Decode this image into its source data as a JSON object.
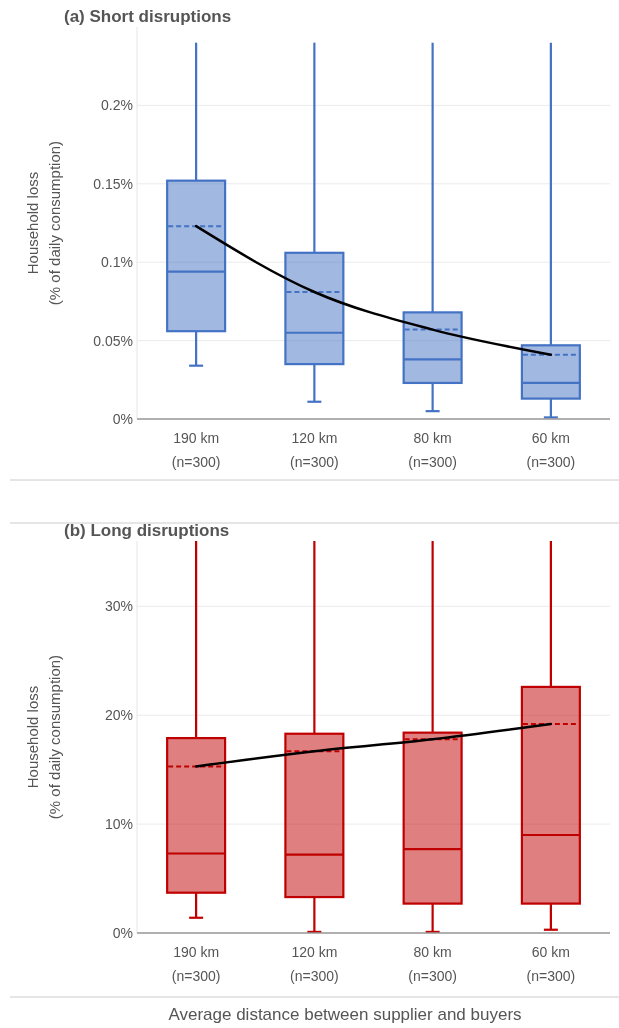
{
  "chart_data": [
    {
      "type": "box",
      "title": "(a) Short disruptions",
      "ylabel": "Household loss\n(% of daily consumption)",
      "categories": [
        "190 km\n(n=300)",
        "120 km\n(n=300)",
        "80 km\n(n=300)",
        "60 km\n(n=300)"
      ],
      "ylim": [
        0,
        0.25
      ],
      "yticks": [
        {
          "value": 0,
          "label": "0%"
        },
        {
          "value": 0.05,
          "label": "0.05%"
        },
        {
          "value": 0.1,
          "label": "0.1%"
        },
        {
          "value": 0.15,
          "label": "0.15%"
        },
        {
          "value": 0.2,
          "label": "0.2%"
        }
      ],
      "grid": "y",
      "series": [
        {
          "type": "box",
          "color": "#4472c4",
          "boxes": [
            {
              "low": 0.034,
              "q1": 0.056,
              "median": 0.094,
              "q3": 0.152,
              "high": 0.24,
              "mean": 0.123
            },
            {
              "low": 0.011,
              "q1": 0.035,
              "median": 0.055,
              "q3": 0.106,
              "high": 0.24,
              "mean": 0.081
            },
            {
              "low": 0.005,
              "q1": 0.023,
              "median": 0.038,
              "q3": 0.068,
              "high": 0.24,
              "mean": 0.057
            },
            {
              "low": 0.001,
              "q1": 0.013,
              "median": 0.023,
              "q3": 0.047,
              "high": 0.24,
              "mean": 0.041
            }
          ]
        },
        {
          "type": "line",
          "color": "#000000",
          "values": [
            0.123,
            0.081,
            0.057,
            0.041
          ]
        }
      ]
    },
    {
      "type": "box",
      "title": "(b) Long disruptions",
      "ylabel": "Household loss\n(% of daily consumption)",
      "xlabel": "Average distance between supplier and buyers",
      "categories": [
        "190 km\n(n=300)",
        "120 km\n(n=300)",
        "80 km\n(n=300)",
        "60 km\n(n=300)"
      ],
      "ylim": [
        0,
        36
      ],
      "yticks": [
        {
          "value": 0,
          "label": "0%"
        },
        {
          "value": 10,
          "label": "10%"
        },
        {
          "value": 20,
          "label": "20%"
        },
        {
          "value": 30,
          "label": "30%"
        }
      ],
      "grid": "y",
      "series": [
        {
          "type": "box",
          "color": "#c00000",
          "boxes": [
            {
              "low": 1.4,
              "q1": 3.7,
              "median": 7.3,
              "q3": 17.9,
              "high": 36,
              "mean": 15.3
            },
            {
              "low": 0.1,
              "q1": 3.3,
              "median": 7.2,
              "q3": 18.3,
              "high": 36,
              "mean": 16.7
            },
            {
              "low": 0.1,
              "q1": 2.7,
              "median": 7.7,
              "q3": 18.4,
              "high": 36,
              "mean": 17.8
            },
            {
              "low": 0.3,
              "q1": 2.7,
              "median": 9.0,
              "q3": 22.6,
              "high": 36,
              "mean": 19.2
            }
          ]
        },
        {
          "type": "line",
          "color": "#000000",
          "values": [
            15.3,
            16.7,
            17.8,
            19.2
          ]
        }
      ]
    }
  ]
}
